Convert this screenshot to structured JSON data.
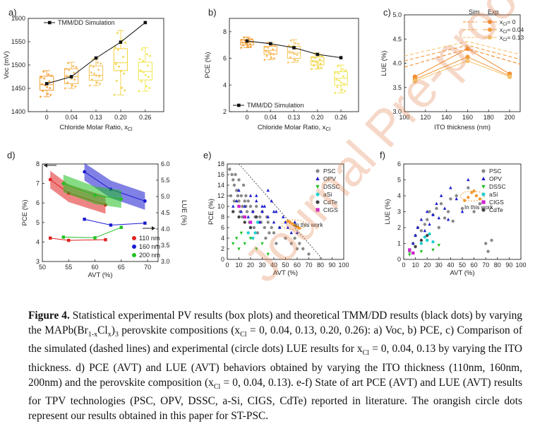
{
  "watermark": "Journal Pre-proof",
  "caption": {
    "label": "Figure 4.",
    "parts": [
      {
        "t": " Statistical experimental PV results (box plots) and theoretical TMM/DD results (black dots) by varying the MAPb(Br"
      },
      {
        "s": "1-x"
      },
      {
        "t": "Cl"
      },
      {
        "s": "x"
      },
      {
        "t": ")"
      },
      {
        "s": "3"
      },
      {
        "t": " perovskite compositions (x"
      },
      {
        "s": "Cl"
      },
      {
        "t": " = 0, 0.04, 0.13, 0.20, 0.26): a) Voc, b) PCE, c) Comparison of the simulated (dashed lines) and experimental (circle dots) LUE results for x"
      },
      {
        "s": "Cl"
      },
      {
        "t": " = 0, 0.04, 0.13 by varying the ITO thickness. d) PCE (AVT) and LUE (AVT) behaviors obtained by varying the ITO thickness (110nm, 160nm, 200nm) and the perovskite composition (x"
      },
      {
        "s": "Cl"
      },
      {
        "t": " = 0, 0.04, 0.13). e-f) State of art PCE (AVT) and LUE (AVT) results for TPV technologies (PSC, OPV, DSSC, a-Si, CIGS, CdTe) reported in literature. The orangish circle dots represent our results obtained in this paper for ST-PSC."
      }
    ]
  },
  "chart_data": [
    {
      "panel": "a)",
      "type": "box",
      "categories": [
        "0",
        "0.04",
        "0.13",
        "0.20",
        "0.26"
      ],
      "xlabel": "Chloride Molar Ratio, x",
      "xlabel_sub": "Cl",
      "ylabel": "Voc (mV)",
      "ylim": [
        1400,
        1600
      ],
      "yticks": [
        1400,
        1450,
        1500,
        1550,
        1600
      ],
      "box_colors": [
        "#f29a2e",
        "#f7b24a",
        "#f5c35a",
        "#f2d23c",
        "#f0e44a"
      ],
      "boxes": [
        {
          "min": 1432,
          "q1": 1446,
          "median": 1458,
          "q3": 1476,
          "max": 1488
        },
        {
          "min": 1450,
          "q1": 1460,
          "median": 1475,
          "q3": 1492,
          "max": 1506
        },
        {
          "min": 1456,
          "q1": 1467,
          "median": 1478,
          "q3": 1498,
          "max": 1514
        },
        {
          "min": 1436,
          "q1": 1488,
          "median": 1505,
          "q3": 1535,
          "max": 1574
        },
        {
          "min": 1444,
          "q1": 1468,
          "median": 1486,
          "q3": 1506,
          "max": 1537
        }
      ],
      "simulation": {
        "name": "TMM/DD Simulation",
        "values": [
          1460,
          1475,
          1515,
          1549,
          1591
        ]
      }
    },
    {
      "panel": "b)",
      "type": "box",
      "categories": [
        "0",
        "0.04",
        "0.13",
        "0.20",
        "0.26"
      ],
      "xlabel": "Chloride Molar Ratio, x",
      "xlabel_sub": "Cl",
      "ylabel": "PCE (%)",
      "ylim": [
        2,
        9
      ],
      "yticks": [
        2,
        4,
        6,
        8
      ],
      "box_colors": [
        "#f29a2e",
        "#f7b24a",
        "#f5c35a",
        "#f2d23c",
        "#f0e44a"
      ],
      "boxes": [
        {
          "min": 6.8,
          "q1": 7.0,
          "median": 7.2,
          "q3": 7.4,
          "max": 7.6
        },
        {
          "min": 5.9,
          "q1": 6.3,
          "median": 6.6,
          "q3": 6.9,
          "max": 7.2
        },
        {
          "min": 5.7,
          "q1": 6.0,
          "median": 6.4,
          "q3": 6.9,
          "max": 7.4
        },
        {
          "min": 5.2,
          "q1": 5.5,
          "median": 5.8,
          "q3": 6.1,
          "max": 6.4
        },
        {
          "min": 3.4,
          "q1": 4.0,
          "median": 4.5,
          "q3": 5.0,
          "max": 5.5
        }
      ],
      "simulation": {
        "name": "TMM/DD Simulation",
        "values": [
          7.3,
          7.1,
          6.8,
          6.3,
          6.05
        ]
      }
    },
    {
      "panel": "c)",
      "type": "line",
      "xlabel": "ITO thickness (nm)",
      "ylabel": "LUE (%)",
      "xlim": [
        100,
        210
      ],
      "ylim": [
        3.0,
        5.0
      ],
      "xticks": [
        100,
        120,
        140,
        160,
        180,
        200
      ],
      "yticks": [
        3.0,
        3.5,
        4.0,
        4.5,
        5.0
      ],
      "legend_headers": [
        "Sim",
        "Exp"
      ],
      "series": [
        {
          "name": "x",
          "name_sub": "Cl",
          "name_tail": "= 0",
          "color": "#f28a2a",
          "sim": {
            "x": [
              100,
              160,
              210
            ],
            "y": [
              3.92,
              4.3,
              3.98
            ]
          },
          "exp": {
            "x": [
              110,
              160,
              200
            ],
            "y": [
              3.72,
              4.3,
              3.78
            ]
          }
        },
        {
          "name": "x",
          "name_sub": "Cl",
          "name_tail": "= 0.04",
          "color": "#f29a3a",
          "sim": {
            "x": [
              100,
              160,
              210
            ],
            "y": [
              4.05,
              4.37,
              4.08
            ]
          },
          "exp": {
            "x": [
              110,
              160,
              200
            ],
            "y": [
              3.67,
              4.13,
              3.74
            ]
          }
        },
        {
          "name": "x",
          "name_sub": "Cl",
          "name_tail": "= 0.13",
          "color": "#f5c26a",
          "sim": {
            "x": [
              100,
              160,
              210
            ],
            "y": [
              4.15,
              4.45,
              4.18
            ]
          },
          "exp": {
            "x": [
              110,
              160,
              200
            ],
            "y": [
              3.63,
              4.05,
              3.72
            ]
          }
        }
      ]
    },
    {
      "panel": "d)",
      "type": "line",
      "xlabel": "AVT (%)",
      "ylabel": "PCE (%)",
      "ylabel_right": "LUE (%)",
      "xlim": [
        50,
        72
      ],
      "ylim": [
        3,
        8
      ],
      "ylim_right": [
        3.0,
        6.0
      ],
      "xticks": [
        50,
        55,
        60,
        65,
        70
      ],
      "yticks": [
        3,
        4,
        5,
        6,
        7,
        8
      ],
      "yticks_right": [
        3.0,
        3.5,
        4.0,
        4.5,
        5.0,
        5.5,
        6.0
      ],
      "series": [
        {
          "name": "110 nm",
          "color": "#e02020",
          "pce": {
            "x": [
              51.5,
              55,
              62
            ],
            "y": [
              7.2,
              6.5,
              5.9
            ]
          },
          "lue": {
            "x": [
              51.5,
              55,
              62
            ],
            "y": [
              3.72,
              3.65,
              3.67
            ]
          }
        },
        {
          "name": "160 nm",
          "color": "#1a1ad0",
          "pce": {
            "x": [
              58,
              63,
              69.5
            ],
            "y": [
              7.6,
              6.7,
              6.1
            ]
          },
          "lue": {
            "x": [
              58,
              63,
              69.5
            ],
            "y": [
              4.3,
              4.12,
              4.18
            ]
          }
        },
        {
          "name": "200 nm",
          "color": "#20c020",
          "pce": {
            "x": [
              54,
              60,
              65
            ],
            "y": [
              7.0,
              6.4,
              6.2
            ]
          },
          "lue": {
            "x": [
              54,
              60,
              65
            ],
            "y": [
              3.75,
              3.73,
              4.05
            ]
          }
        }
      ]
    },
    {
      "panel": "e)",
      "type": "scatter",
      "xlabel": "AVT (%)",
      "ylabel": "PCE (%)",
      "xlim": [
        0,
        100
      ],
      "ylim": [
        0,
        18
      ],
      "xticks": [
        0,
        10,
        20,
        30,
        40,
        50,
        60,
        70,
        80,
        90,
        100
      ],
      "yticks": [
        0,
        2,
        4,
        6,
        8,
        10,
        12,
        14,
        16,
        18
      ],
      "annotation": "In this work",
      "series": [
        {
          "name": "PSC",
          "color": "#888888",
          "marker": "circle",
          "x": [
            2,
            4,
            5,
            6,
            7,
            8,
            9,
            10,
            10,
            12,
            13,
            14,
            15,
            16,
            17,
            18,
            20,
            22,
            24,
            25,
            27,
            28,
            30,
            32,
            34,
            35,
            38,
            40,
            45,
            50,
            55,
            58,
            60,
            62,
            65,
            70,
            3,
            6,
            9,
            11,
            13,
            16,
            19,
            23,
            26,
            29,
            33,
            36,
            42
          ],
          "y": [
            17,
            16,
            15,
            14,
            16,
            13,
            12,
            15,
            11,
            12,
            10,
            14,
            11,
            12,
            9,
            11,
            10,
            9,
            8,
            10,
            7,
            8,
            9,
            6,
            8,
            7,
            6,
            5,
            6,
            4,
            3,
            4,
            2,
            3,
            2,
            1,
            12,
            11,
            13,
            9,
            8,
            10,
            7,
            6,
            5,
            7,
            4,
            5,
            3
          ]
        },
        {
          "name": "OPV",
          "color": "#1a1ad0",
          "marker": "triangle",
          "x": [
            5,
            8,
            10,
            12,
            15,
            18,
            20,
            22,
            25,
            28,
            30,
            32,
            35,
            38,
            40,
            42,
            45,
            48,
            50,
            52,
            55,
            58,
            60,
            20,
            25,
            30,
            35,
            40
          ],
          "y": [
            10,
            11,
            13,
            9,
            10,
            8,
            12,
            9,
            11,
            7,
            9,
            10,
            8,
            11,
            7,
            9,
            6,
            8,
            7,
            6,
            5,
            7,
            5,
            6,
            12,
            10,
            13,
            9
          ]
        },
        {
          "name": "DSSC",
          "color": "#20c020",
          "marker": "triangle-down",
          "x": [
            5,
            8,
            10,
            12,
            15,
            20,
            25,
            30,
            35
          ],
          "y": [
            3,
            4,
            2,
            5,
            3,
            4,
            2,
            3,
            1
          ]
        },
        {
          "name": "aSi",
          "color": "#20d0d0",
          "marker": "circle",
          "x": [
            18,
            20,
            22,
            24,
            26
          ],
          "y": [
            5,
            6,
            4,
            5,
            7
          ]
        },
        {
          "name": "CdTe",
          "color": "#444444",
          "marker": "circle",
          "x": [
            5,
            10,
            15,
            20,
            25
          ],
          "y": [
            9,
            8,
            7,
            6,
            8
          ]
        },
        {
          "name": "CIGS",
          "color": "#d020d0",
          "marker": "square",
          "x": [
            10,
            15,
            20
          ],
          "y": [
            10,
            8,
            7
          ]
        },
        {
          "name": "In this work",
          "color": "#f29a2e",
          "marker": "circle",
          "x": [
            52,
            54,
            56,
            58,
            60,
            62
          ],
          "y": [
            7.2,
            7.0,
            6.7,
            6.4,
            6.1,
            5.9
          ]
        }
      ],
      "trend": {
        "x": [
          10,
          82
        ],
        "y": [
          18,
          0
        ]
      }
    },
    {
      "panel": "f)",
      "type": "scatter",
      "xlabel": "AVT (%)",
      "ylabel": "LUE (%)",
      "xlim": [
        0,
        100
      ],
      "ylim": [
        0,
        6
      ],
      "xticks": [
        0,
        10,
        20,
        30,
        40,
        50,
        60,
        70,
        80,
        90,
        100
      ],
      "yticks": [
        0,
        1,
        2,
        3,
        4,
        5,
        6
      ],
      "annotation": "In this work",
      "series": [
        {
          "name": "PSC",
          "color": "#888888",
          "marker": "circle",
          "x": [
            5,
            8,
            10,
            12,
            15,
            18,
            20,
            22,
            25,
            28,
            30,
            32,
            35,
            38,
            40,
            42,
            45,
            50,
            55,
            60,
            65,
            70,
            72,
            75
          ],
          "y": [
            0.5,
            1,
            1.5,
            2,
            1.8,
            2.2,
            2.5,
            3,
            2.8,
            3.2,
            2,
            3.5,
            2.6,
            3,
            3.8,
            2.4,
            4,
            3.2,
            4.5,
            3,
            3.5,
            1,
            0.5,
            1.2
          ]
        },
        {
          "name": "OPV",
          "color": "#1a1ad0",
          "marker": "triangle",
          "x": [
            8,
            10,
            12,
            15,
            18,
            20,
            22,
            25,
            28,
            30,
            32,
            35,
            38,
            40,
            45,
            50,
            55
          ],
          "y": [
            1,
            1.5,
            2,
            2.5,
            1.8,
            3,
            2.2,
            2.8,
            3.5,
            2.6,
            4,
            3.2,
            2.5,
            4.5,
            3.8,
            3,
            5
          ]
        },
        {
          "name": "DSSC",
          "color": "#20c020",
          "marker": "triangle-down",
          "x": [
            5,
            10,
            15,
            20,
            25,
            30
          ],
          "y": [
            0.3,
            0.8,
            0.5,
            1.2,
            0.6,
            0.9
          ]
        },
        {
          "name": "aSi",
          "color": "#20d0d0",
          "marker": "circle",
          "x": [
            15,
            18,
            20,
            22,
            25
          ],
          "y": [
            1,
            1.4,
            1.2,
            1.6,
            1.1
          ]
        },
        {
          "name": "CIGS",
          "color": "#d020d0",
          "marker": "square",
          "x": [
            5,
            8
          ],
          "y": [
            0.6,
            0.4
          ]
        },
        {
          "name": "CdTe",
          "color": "#444444",
          "marker": "circle",
          "x": [
            10,
            15,
            20
          ],
          "y": [
            0.8,
            1.2,
            1.5
          ]
        },
        {
          "name": "In this work",
          "color": "#f29a2e",
          "marker": "circle",
          "x": [
            52,
            55,
            58,
            60,
            62,
            65
          ],
          "y": [
            3.7,
            3.9,
            4.2,
            4.3,
            4.0,
            3.8
          ]
        }
      ]
    }
  ]
}
